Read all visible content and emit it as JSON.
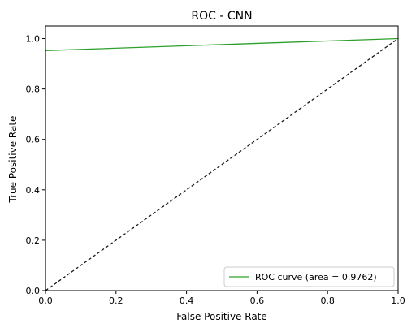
{
  "chart_data": {
    "type": "line",
    "title": "ROC - CNN",
    "xlabel": "False Positive Rate",
    "ylabel": "True Positive Rate",
    "xlim": [
      0.0,
      1.0
    ],
    "ylim": [
      0.0,
      1.05
    ],
    "xticks": [
      "0.0",
      "0.2",
      "0.4",
      "0.6",
      "0.8",
      "1.0"
    ],
    "yticks": [
      "0.0",
      "0.2",
      "0.4",
      "0.6",
      "0.8",
      "1.0"
    ],
    "grid": false,
    "legend_position": "lower right",
    "series": [
      {
        "name": "ROC curve (area = 0.9762)",
        "color": "#2ca02c",
        "style": "solid",
        "x": [
          0.0,
          0.0,
          1.0
        ],
        "y": [
          0.0,
          0.9524,
          1.0
        ]
      },
      {
        "color": "#1a1a1a",
        "style": "dashed",
        "x": [
          0.0,
          1.0
        ],
        "y": [
          0.0,
          1.0
        ]
      }
    ]
  }
}
